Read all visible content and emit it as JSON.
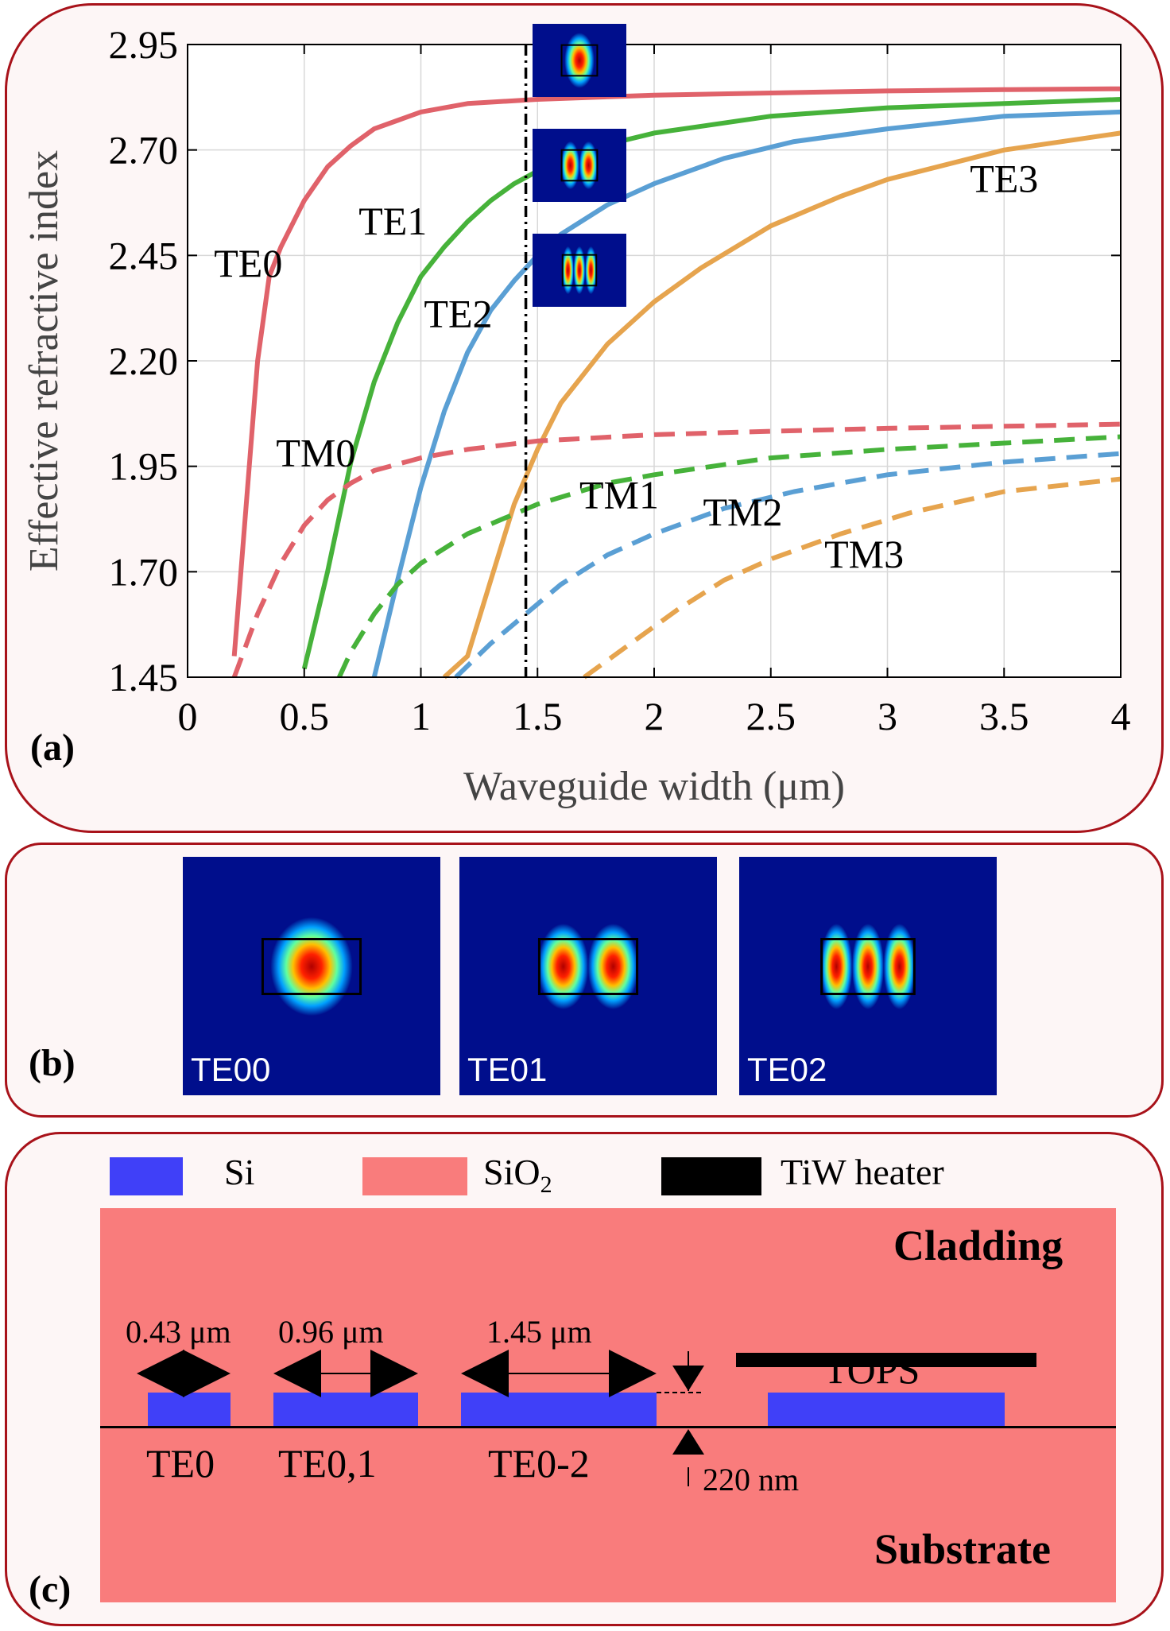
{
  "chart_data": {
    "type": "line",
    "panel_label": "(a)",
    "xlabel": "Waveguide width (μm)",
    "ylabel": "Effective refractive index",
    "xlim": [
      0,
      4
    ],
    "ylim": [
      1.45,
      2.95
    ],
    "xticks": [
      0,
      0.5,
      1,
      1.5,
      2,
      2.5,
      3,
      3.5,
      4
    ],
    "xtick_labels": [
      "0",
      "0.5",
      "1",
      "1.5",
      "2",
      "2.5",
      "3",
      "3.5",
      "4"
    ],
    "yticks": [
      1.45,
      1.7,
      1.95,
      2.2,
      2.45,
      2.7,
      2.95
    ],
    "ytick_labels": [
      "1.45",
      "1.70",
      "1.95",
      "2.20",
      "2.45",
      "2.70",
      "2.95"
    ],
    "grid": true,
    "vline_x": 1.45,
    "series": [
      {
        "name": "TE0",
        "style": "solid",
        "color": "#e0626a",
        "x": [
          0.2,
          0.25,
          0.3,
          0.35,
          0.4,
          0.5,
          0.6,
          0.7,
          0.8,
          0.9,
          1.0,
          1.2,
          1.5,
          2.0,
          2.5,
          3.0,
          3.5,
          4.0
        ],
        "y": [
          1.5,
          1.85,
          2.2,
          2.4,
          2.47,
          2.58,
          2.66,
          2.71,
          2.75,
          2.77,
          2.79,
          2.81,
          2.82,
          2.83,
          2.835,
          2.84,
          2.843,
          2.845
        ]
      },
      {
        "name": "TE1",
        "style": "solid",
        "color": "#46b23a",
        "x": [
          0.5,
          0.6,
          0.7,
          0.8,
          0.9,
          1.0,
          1.1,
          1.2,
          1.3,
          1.4,
          1.5,
          1.7,
          2.0,
          2.5,
          3.0,
          3.5,
          4.0
        ],
        "y": [
          1.47,
          1.7,
          1.96,
          2.15,
          2.29,
          2.4,
          2.47,
          2.53,
          2.58,
          2.62,
          2.65,
          2.7,
          2.74,
          2.78,
          2.8,
          2.81,
          2.82
        ]
      },
      {
        "name": "TE2",
        "style": "solid",
        "color": "#5a9fd4",
        "x": [
          0.8,
          0.9,
          1.0,
          1.1,
          1.2,
          1.3,
          1.4,
          1.5,
          1.6,
          1.8,
          2.0,
          2.3,
          2.6,
          3.0,
          3.5,
          4.0
        ],
        "y": [
          1.45,
          1.68,
          1.9,
          2.08,
          2.22,
          2.32,
          2.39,
          2.45,
          2.5,
          2.57,
          2.62,
          2.68,
          2.72,
          2.75,
          2.78,
          2.79
        ]
      },
      {
        "name": "TE3",
        "style": "solid",
        "color": "#e6a44e",
        "x": [
          1.1,
          1.2,
          1.3,
          1.4,
          1.5,
          1.6,
          1.8,
          2.0,
          2.2,
          2.5,
          2.8,
          3.0,
          3.5,
          4.0
        ],
        "y": [
          1.45,
          1.5,
          1.68,
          1.86,
          1.99,
          2.1,
          2.24,
          2.34,
          2.42,
          2.52,
          2.59,
          2.63,
          2.7,
          2.74
        ]
      },
      {
        "name": "TM0",
        "style": "dashed",
        "color": "#e0626a",
        "x": [
          0.2,
          0.3,
          0.4,
          0.5,
          0.6,
          0.7,
          0.8,
          1.0,
          1.2,
          1.5,
          2.0,
          2.5,
          3.0,
          3.5,
          4.0
        ],
        "y": [
          1.45,
          1.6,
          1.72,
          1.81,
          1.87,
          1.91,
          1.94,
          1.97,
          1.99,
          2.01,
          2.025,
          2.033,
          2.04,
          2.045,
          2.05
        ]
      },
      {
        "name": "TM1",
        "style": "dashed",
        "color": "#46b23a",
        "x": [
          0.65,
          0.7,
          0.8,
          0.9,
          1.0,
          1.2,
          1.5,
          1.8,
          2.0,
          2.5,
          3.0,
          3.5,
          4.0
        ],
        "y": [
          1.45,
          1.51,
          1.6,
          1.67,
          1.72,
          1.79,
          1.86,
          1.91,
          1.93,
          1.97,
          1.99,
          2.005,
          2.02
        ]
      },
      {
        "name": "TM2",
        "style": "dashed",
        "color": "#5a9fd4",
        "x": [
          1.15,
          1.3,
          1.45,
          1.6,
          1.8,
          2.0,
          2.3,
          2.6,
          3.0,
          3.5,
          4.0
        ],
        "y": [
          1.45,
          1.53,
          1.6,
          1.67,
          1.74,
          1.79,
          1.85,
          1.89,
          1.93,
          1.96,
          1.98
        ]
      },
      {
        "name": "TM3",
        "style": "dashed",
        "color": "#e6a44e",
        "x": [
          1.7,
          1.9,
          2.1,
          2.3,
          2.5,
          2.8,
          3.1,
          3.5,
          4.0
        ],
        "y": [
          1.45,
          1.53,
          1.61,
          1.68,
          1.73,
          1.79,
          1.84,
          1.89,
          1.92
        ]
      }
    ],
    "annotations": [
      {
        "text": "TE0",
        "x": 0.26,
        "y": 2.4
      },
      {
        "text": "TE1",
        "x": 0.88,
        "y": 2.5
      },
      {
        "text": "TE2",
        "x": 1.16,
        "y": 2.28
      },
      {
        "text": "TE3",
        "x": 3.5,
        "y": 2.6
      },
      {
        "text": "TM0",
        "x": 0.55,
        "y": 1.95
      },
      {
        "text": "TM1",
        "x": 1.85,
        "y": 1.85
      },
      {
        "text": "TM2",
        "x": 2.38,
        "y": 1.81
      },
      {
        "text": "TM3",
        "x": 2.9,
        "y": 1.71
      }
    ]
  },
  "panel_b": {
    "label": "(b)",
    "modes": [
      {
        "name": "TE00",
        "lobes": 1
      },
      {
        "name": "TE01",
        "lobes": 2
      },
      {
        "name": "TE02",
        "lobes": 3
      }
    ]
  },
  "panel_c": {
    "label": "(c)",
    "legend": {
      "si": {
        "label": "Si",
        "color": "#4040f8"
      },
      "sio2": {
        "base": "SiO",
        "sub": "2",
        "color": "#f97c7c"
      },
      "heater": {
        "label": "TiW heater",
        "color": "#000000"
      }
    },
    "cladding": "Cladding",
    "substrate": "Substrate",
    "tops": "TOPS",
    "widths": [
      "0.43 μm",
      "0.96 μm",
      "1.45 μm"
    ],
    "waveguides": [
      "TE0",
      "TE0,1",
      "TE0-2"
    ],
    "thickness": "220 nm"
  }
}
